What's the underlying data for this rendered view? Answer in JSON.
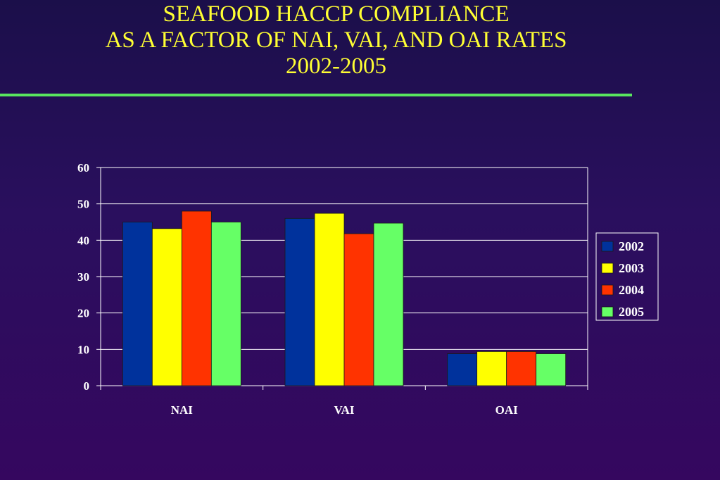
{
  "title_lines": [
    "SEAFOOD HACCP COMPLIANCE",
    "AS A FACTOR OF NAI, VAI, AND OAI RATES",
    "2002-2005"
  ],
  "colors": {
    "title": "#ffff33",
    "rule": "#59e65f",
    "axis_text": "#ffffff"
  },
  "chart_data": {
    "type": "bar",
    "title": "SEAFOOD HACCP COMPLIANCE AS A FACTOR OF NAI, VAI, AND OAI RATES 2002-2005",
    "categories": [
      "NAI",
      "VAI",
      "OAI"
    ],
    "series": [
      {
        "name": "2002",
        "color": "#00329c",
        "values": [
          45,
          46,
          8.8
        ]
      },
      {
        "name": "2003",
        "color": "#ffff00",
        "values": [
          43.2,
          47.4,
          9.4
        ]
      },
      {
        "name": "2004",
        "color": "#ff3300",
        "values": [
          48,
          41.8,
          9.4
        ]
      },
      {
        "name": "2005",
        "color": "#66ff66",
        "values": [
          45,
          44.7,
          8.8
        ]
      }
    ],
    "ylim": [
      0,
      60
    ],
    "yticks": [
      "0",
      "10",
      "20",
      "30",
      "40",
      "50",
      "60"
    ],
    "grid": true,
    "legend_position": "right"
  }
}
